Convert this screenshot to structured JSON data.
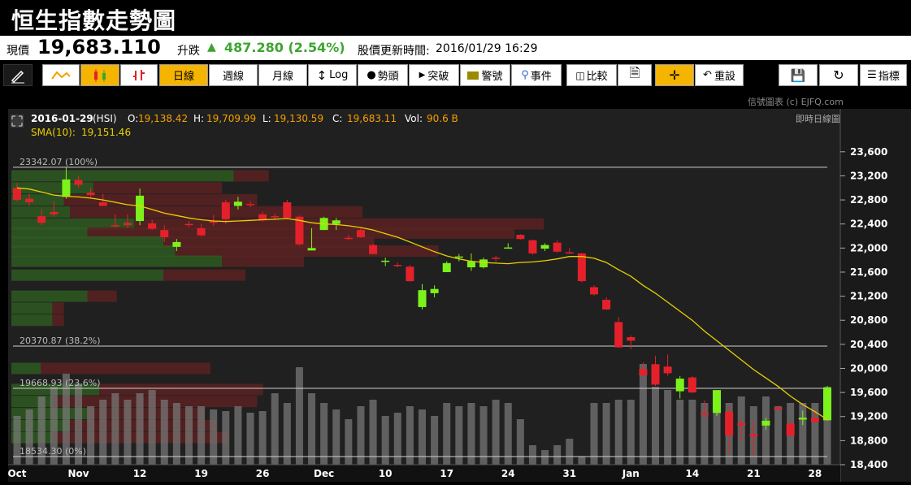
{
  "title": "恒生指數走勢圖",
  "quote": {
    "price_label": "現價",
    "price": "19,683.110",
    "change_label": "升跌",
    "change": "487.280 (2.54%)",
    "update_label": "股價更新時間:",
    "update_time": "2016/01/29 16:29"
  },
  "toolbar": {
    "daily": "日線",
    "weekly": "週線",
    "monthly": "月線",
    "log": "Log",
    "mark": "勢頭",
    "breakout": "突破",
    "alert": "警號",
    "event": "事件",
    "compare": "比較",
    "reset": "重設",
    "indicator": "指標"
  },
  "credit": "信號圖表 (c) EJFQ.com",
  "chart_info": {
    "date": "2016-01-29",
    "symbol": "(HSI)",
    "o_label": "O:",
    "o": "19,138.42",
    "h_label": "H:",
    "h": "19,709.99",
    "l_label": "L:",
    "l": "19,130.59",
    "c_label": "C:",
    "c": "19,683.11",
    "vol_label": "Vol:",
    "vol": "90.6 B",
    "sma_label": "SMA(10):",
    "sma": "19,151.46",
    "realtime": "即時日線圖"
  },
  "colors": {
    "up": "#7cf21b",
    "down": "#e4212b",
    "sma": "#e8d000",
    "axis_text": "#ffffff",
    "fib_text": "#bbbbbb"
  },
  "chart_data": {
    "type": "candlestick",
    "ylim": [
      18400,
      23800
    ],
    "y_ticks": [
      "23,600",
      "23,200",
      "22,800",
      "22,400",
      "22,000",
      "21,600",
      "21,200",
      "20,800",
      "20,400",
      "20,000",
      "19,600",
      "19,200",
      "18,800",
      "18,400"
    ],
    "y_tick_values": [
      23600,
      23200,
      22800,
      22400,
      22000,
      21600,
      21200,
      20800,
      20400,
      20000,
      19600,
      19200,
      18800,
      18400
    ],
    "x_tick_labels": [
      "Oct",
      "Nov",
      "12",
      "19",
      "26",
      "Dec",
      "10",
      "17",
      "24",
      "31",
      "Jan",
      "14",
      "21",
      "28"
    ],
    "x_tick_index": [
      0,
      5,
      10,
      15,
      20,
      25,
      30,
      35,
      40,
      45,
      50,
      55,
      60,
      65
    ],
    "fib_levels": [
      {
        "label": "23342.07 (100%)",
        "value": 23342.07
      },
      {
        "label": "20370.87 (38.2%)",
        "value": 20370.87
      },
      {
        "label": "19668.93 (23.6%)",
        "value": 19668.93
      },
      {
        "label": "18534.30 (0%)",
        "value": 18534.3
      }
    ],
    "ohlc": [
      [
        23000,
        23080,
        22780,
        22800
      ],
      [
        22820,
        22900,
        22700,
        22760
      ],
      [
        22530,
        22650,
        22380,
        22420
      ],
      [
        22600,
        22780,
        22520,
        22560
      ],
      [
        22850,
        23342,
        22820,
        23140
      ],
      [
        23130,
        23200,
        23000,
        23050
      ],
      [
        22920,
        23000,
        22840,
        22880
      ],
      [
        22760,
        22900,
        22700,
        22700
      ],
      [
        22380,
        22560,
        22340,
        22360
      ],
      [
        22420,
        22560,
        22330,
        22380
      ],
      [
        22450,
        22990,
        22380,
        22870
      ],
      [
        22410,
        22470,
        22300,
        22320
      ],
      [
        22300,
        22380,
        22100,
        22180
      ],
      [
        22020,
        22150,
        21950,
        22100
      ],
      [
        22400,
        22450,
        22350,
        22380
      ],
      [
        22330,
        22400,
        22200,
        22210
      ],
      [
        22450,
        22550,
        22370,
        22420
      ],
      [
        22760,
        22800,
        22400,
        22480
      ],
      [
        22700,
        22850,
        22640,
        22770
      ],
      [
        22730,
        22780,
        22680,
        22720
      ],
      [
        22560,
        22600,
        22440,
        22460
      ],
      [
        22530,
        22570,
        22470,
        22510
      ],
      [
        22760,
        22800,
        22480,
        22500
      ],
      [
        22520,
        22540,
        22040,
        22060
      ],
      [
        21960,
        22330,
        21960,
        22000
      ],
      [
        22300,
        22520,
        22300,
        22500
      ],
      [
        22400,
        22500,
        22300,
        22460
      ],
      [
        22170,
        22220,
        22130,
        22150
      ],
      [
        22300,
        22340,
        22170,
        22180
      ],
      [
        22050,
        22070,
        21900,
        21900
      ],
      [
        21780,
        21840,
        21700,
        21790
      ],
      [
        21720,
        21760,
        21680,
        21710
      ],
      [
        21690,
        21720,
        21440,
        21450
      ],
      [
        21020,
        21400,
        20980,
        21300
      ],
      [
        21250,
        21380,
        21180,
        21320
      ],
      [
        21600,
        21780,
        21600,
        21750
      ],
      [
        21850,
        21900,
        21780,
        21860
      ],
      [
        21680,
        21910,
        21620,
        21780
      ],
      [
        21680,
        21840,
        21660,
        21810
      ],
      [
        21840,
        21870,
        21770,
        21820
      ],
      [
        21990,
        22080,
        21990,
        22010
      ],
      [
        22220,
        22230,
        22140,
        22150
      ],
      [
        22130,
        22140,
        21890,
        21910
      ],
      [
        21990,
        22080,
        21950,
        22050
      ],
      [
        22090,
        22130,
        21920,
        21940
      ],
      [
        21930,
        22000,
        21900,
        21910
      ],
      [
        21910,
        21920,
        21430,
        21450
      ],
      [
        21350,
        21380,
        21210,
        21230
      ],
      [
        21140,
        21180,
        20970,
        20980
      ],
      [
        20770,
        20850,
        20340,
        20350
      ],
      [
        20520,
        20550,
        20320,
        20460
      ],
      [
        19990,
        20100,
        19880,
        19880
      ],
      [
        20070,
        20210,
        19710,
        19730
      ],
      [
        20030,
        20230,
        19880,
        19920
      ],
      [
        19620,
        19870,
        19500,
        19830
      ],
      [
        19850,
        19870,
        19590,
        19600
      ],
      [
        19260,
        19470,
        19170,
        19230
      ],
      [
        19260,
        19640,
        19210,
        19640
      ],
      [
        19280,
        19380,
        18580,
        18890
      ],
      [
        19090,
        19150,
        18780,
        19050
      ],
      [
        18910,
        19130,
        18540,
        18870
      ],
      [
        19050,
        19180,
        18980,
        19130
      ],
      [
        19350,
        19380,
        19300,
        19320
      ],
      [
        19080,
        19130,
        18860,
        18880
      ],
      [
        19150,
        19300,
        19060,
        19180
      ],
      [
        19180,
        19310,
        19090,
        19110
      ],
      [
        19138,
        19710,
        19130,
        19683
      ]
    ],
    "sma10": [
      23000,
      22980,
      22930,
      22880,
      22860,
      22850,
      22830,
      22800,
      22760,
      22720,
      22700,
      22640,
      22580,
      22540,
      22500,
      22470,
      22450,
      22440,
      22450,
      22460,
      22470,
      22480,
      22490,
      22460,
      22420,
      22400,
      22390,
      22370,
      22340,
      22300,
      22240,
      22180,
      22100,
      22020,
      21940,
      21870,
      21820,
      21780,
      21760,
      21750,
      21740,
      21760,
      21770,
      21790,
      21820,
      21860,
      21860,
      21830,
      21760,
      21640,
      21530,
      21380,
      21250,
      21100,
      20950,
      20800,
      20620,
      20460,
      20300,
      20140,
      19980,
      19840,
      19700,
      19540,
      19400,
      19280,
      19151
    ],
    "volume_rel": [
      0.3,
      0.34,
      0.42,
      0.48,
      0.56,
      0.5,
      0.36,
      0.4,
      0.44,
      0.4,
      0.44,
      0.46,
      0.4,
      0.38,
      0.36,
      0.36,
      0.34,
      0.33,
      0.36,
      0.32,
      0.33,
      0.44,
      0.38,
      0.6,
      0.44,
      0.38,
      0.34,
      0.28,
      0.36,
      0.4,
      0.3,
      0.32,
      0.36,
      0.34,
      0.3,
      0.38,
      0.36,
      0.38,
      0.36,
      0.4,
      0.38,
      0.28,
      0.12,
      0.09,
      0.12,
      0.16,
      0.05,
      0.38,
      0.38,
      0.4,
      0.4,
      0.62,
      0.48,
      0.46,
      0.4,
      0.4,
      0.38,
      0.38,
      0.38,
      0.42,
      0.36,
      0.42,
      0.36,
      0.38,
      0.38,
      0.38,
      0.48
    ],
    "vol_profile": [
      {
        "level": 23200,
        "up": 0.38,
        "down": 0.06
      },
      {
        "level": 23000,
        "up": 0.14,
        "down": 0.22
      },
      {
        "level": 22800,
        "up": 0.09,
        "down": 0.33
      },
      {
        "level": 22600,
        "up": 0.1,
        "down": 0.5
      },
      {
        "level": 22400,
        "up": 0.21,
        "down": 0.7
      },
      {
        "level": 22250,
        "up": 0.13,
        "down": 0.73
      },
      {
        "level": 22100,
        "up": 0.26,
        "down": 0.36
      },
      {
        "level": 21950,
        "up": 0.28,
        "down": 0.45
      },
      {
        "level": 21780,
        "up": 0.36,
        "down": 0.14
      },
      {
        "level": 21550,
        "up": 0.26,
        "down": 0.14
      },
      {
        "level": 21200,
        "up": 0.13,
        "down": 0.05
      },
      {
        "level": 21000,
        "up": 0.07,
        "down": 0.02
      },
      {
        "level": 20800,
        "up": 0.07,
        "down": 0.02
      },
      {
        "level": 20000,
        "up": 0.05,
        "down": 0.29
      },
      {
        "level": 19650,
        "up": 0.15,
        "down": 0.28
      },
      {
        "level": 19450,
        "up": 0.07,
        "down": 0.35
      },
      {
        "level": 19250,
        "up": 0.13,
        "down": 0.2
      },
      {
        "level": 19050,
        "up": 0.1,
        "down": 0.25
      },
      {
        "level": 18850,
        "up": 0.07,
        "down": 0.3
      }
    ]
  }
}
